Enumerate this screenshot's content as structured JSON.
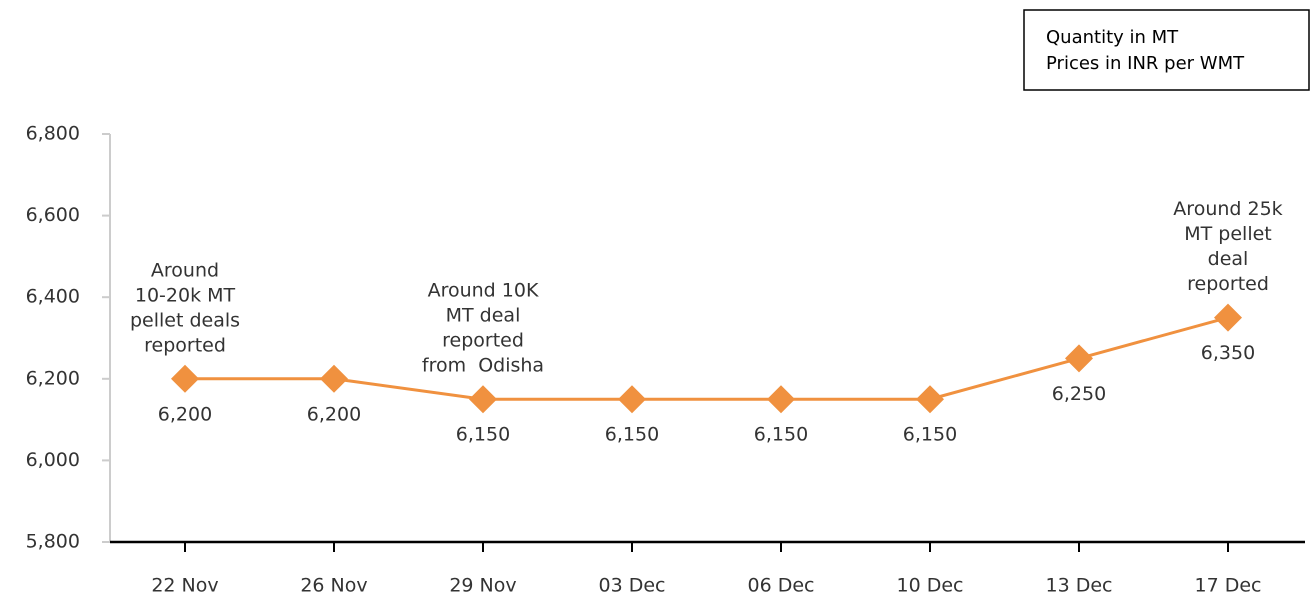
{
  "chart_data": {
    "type": "line",
    "note": [
      "Quantity in MT",
      "Prices in INR per WMT"
    ],
    "categories": [
      "22 Nov",
      "26 Nov",
      "29 Nov",
      "03 Dec",
      "06 Dec",
      "10 Dec",
      "13 Dec",
      "17 Dec"
    ],
    "series": [
      {
        "name": "Price",
        "color": "#f0913f",
        "values": [
          6200,
          6200,
          6150,
          6150,
          6150,
          6150,
          6250,
          6350
        ],
        "value_labels": [
          "6,200",
          "6,200",
          "6,150",
          "6,150",
          "6,150",
          "6,150",
          "6,250",
          "6,350"
        ]
      }
    ],
    "ylim": [
      5800,
      6800
    ],
    "yticks": [
      {
        "value": 5800,
        "label": "5,800"
      },
      {
        "value": 6000,
        "label": "6,000"
      },
      {
        "value": 6200,
        "label": "6,200"
      },
      {
        "value": 6400,
        "label": "6,400"
      },
      {
        "value": 6600,
        "label": "6,600"
      },
      {
        "value": 6800,
        "label": "6,800"
      }
    ],
    "annotations": [
      {
        "x": "22 Nov",
        "lines": [
          "Around",
          "10-20k MT",
          "pellet deals",
          "reported"
        ]
      },
      {
        "x": "29 Nov",
        "lines": [
          "Around 10K",
          "MT deal",
          "reported",
          "from  Odisha"
        ]
      },
      {
        "x": "17 Dec",
        "lines": [
          "Around 25k",
          "MT pellet",
          "deal",
          "reported"
        ]
      }
    ]
  }
}
